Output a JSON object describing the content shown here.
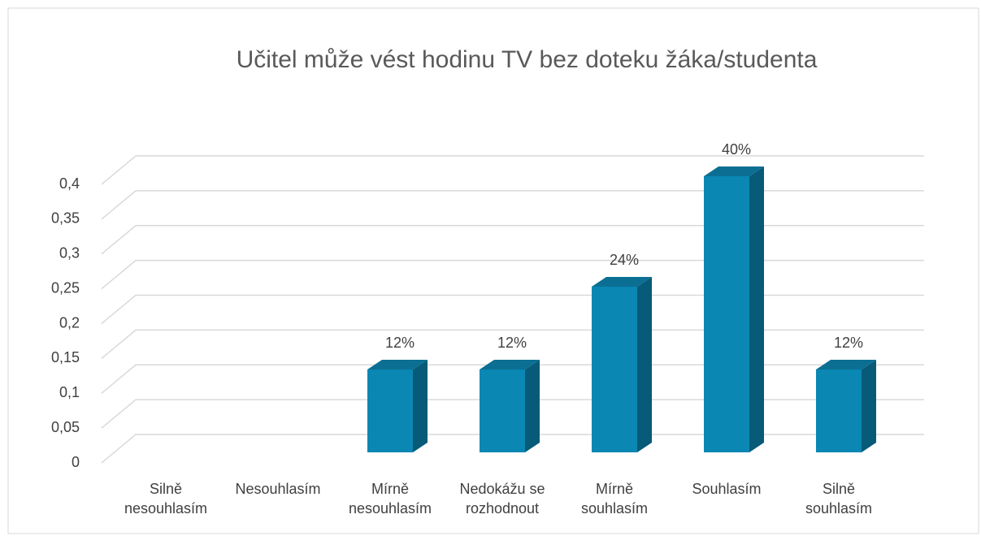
{
  "chart_data": {
    "type": "bar3d",
    "title": "Učitel může vést hodinu TV bez doteku žáka/studenta",
    "categories": [
      "Silně nesouhlasím",
      "Nesouhlasím",
      "Mírně nesouhlasím",
      "Nedokážu se rozhodnout",
      "Mírně souhlasím",
      "Souhlasím",
      "Silně souhlasím"
    ],
    "values": [
      0,
      0,
      0.12,
      0.12,
      0.24,
      0.4,
      0.12
    ],
    "value_labels": [
      null,
      null,
      "12%",
      "12%",
      "24%",
      "40%",
      "12%"
    ],
    "color": "#0a87b3",
    "ylim": [
      0,
      0.4
    ],
    "yticks": [
      0,
      {
        "value": 0.05,
        "label": "0,05"
      },
      {
        "value": 0.1,
        "label": "0,1"
      },
      {
        "value": 0.15,
        "label": "0,15"
      },
      {
        "value": 0.2,
        "label": "0,2"
      },
      {
        "value": 0.25,
        "label": "0,25"
      },
      {
        "value": 0.3,
        "label": "0,3"
      },
      {
        "value": 0.35,
        "label": "0,35"
      },
      {
        "value": 0.4,
        "label": "0,4"
      }
    ],
    "grid": true
  }
}
